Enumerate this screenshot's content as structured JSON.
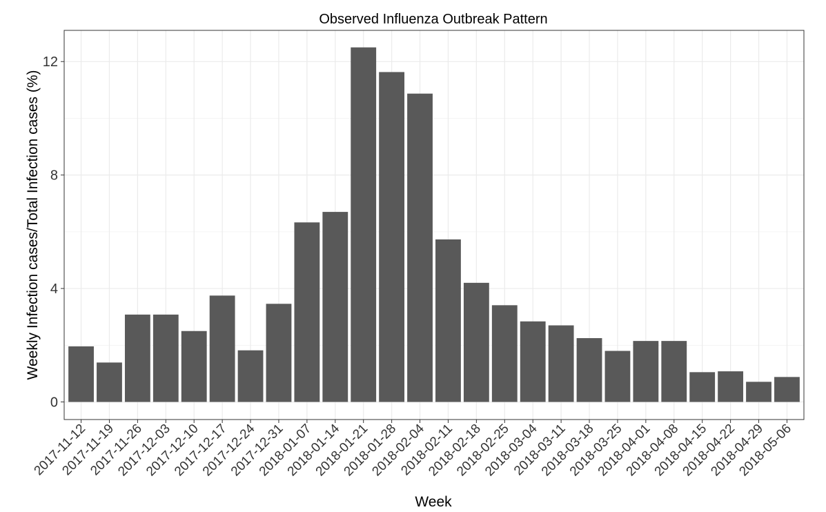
{
  "chart_data": {
    "type": "bar",
    "title": "Observed Influenza Outbreak Pattern",
    "xlabel": "Week",
    "ylabel": "Weekly Infection cases/Total Infection cases (%)",
    "categories": [
      "2017-11-12",
      "2017-11-19",
      "2017-11-26",
      "2017-12-03",
      "2017-12-10",
      "2017-12-17",
      "2017-12-24",
      "2017-12-31",
      "2018-01-07",
      "2018-01-14",
      "2018-01-21",
      "2018-01-28",
      "2018-02-04",
      "2018-02-11",
      "2018-02-18",
      "2018-02-25",
      "2018-03-04",
      "2018-03-11",
      "2018-03-18",
      "2018-03-25",
      "2018-04-01",
      "2018-04-08",
      "2018-04-15",
      "2018-04-22",
      "2018-04-29",
      "2018-05-06"
    ],
    "values": [
      1.96,
      1.39,
      3.08,
      3.08,
      2.5,
      3.75,
      1.82,
      3.46,
      6.33,
      6.7,
      12.5,
      11.63,
      10.87,
      5.73,
      4.2,
      3.41,
      2.84,
      2.7,
      2.25,
      1.8,
      2.15,
      2.15,
      1.05,
      1.08,
      0.71,
      0.88
    ],
    "yticks": [
      0,
      4,
      8,
      12
    ],
    "ylim": [
      -0.62,
      13.1
    ],
    "grid": true,
    "bar_color": "#595959"
  }
}
